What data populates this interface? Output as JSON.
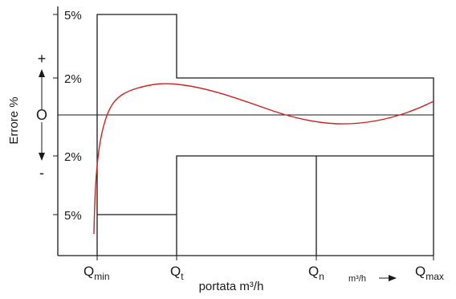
{
  "ylabel": "Errore  %",
  "sign_plus": "+",
  "sign_zero": "O",
  "sign_minus": "-",
  "ticks": {
    "upper_outer": "5%",
    "upper_inner": "2%",
    "lower_inner": "2%",
    "lower_outer": "5%"
  },
  "xpoints": {
    "qmin": {
      "main": "Q",
      "sub": "min"
    },
    "qt": {
      "main": "Q",
      "sub": "t"
    },
    "qn": {
      "main": "Q",
      "sub": "n"
    },
    "qmax": {
      "main": "Q",
      "sub": "max"
    }
  },
  "xlabel": "portata m³/h",
  "xunit_arrow_label": "m³/h",
  "colors": {
    "line": "#1a1a1a",
    "curve": "#d42020"
  }
}
